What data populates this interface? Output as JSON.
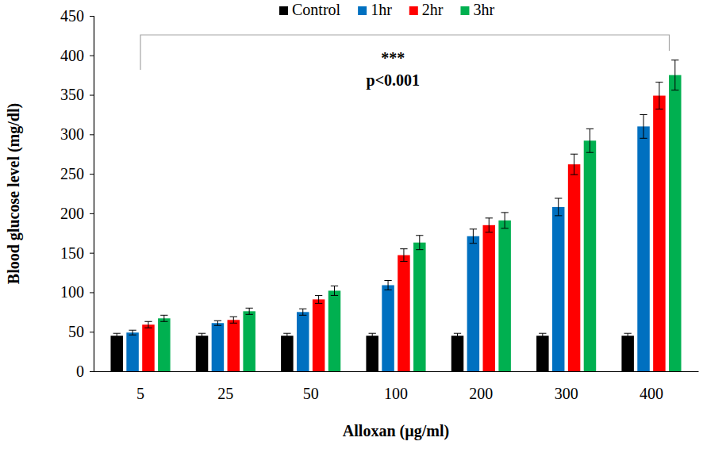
{
  "chart_data": {
    "type": "bar",
    "x_label": "Alloxan (µg/ml)",
    "y_label": "Blood glucose level (mg/dl)",
    "categories": [
      "5",
      "25",
      "50",
      "100",
      "200",
      "300",
      "400"
    ],
    "series": [
      {
        "name": "Control",
        "color": "#000000",
        "values": [
          45,
          45,
          45,
          45,
          45,
          45,
          45
        ],
        "errors": [
          3,
          3,
          3,
          3,
          3,
          3,
          3
        ]
      },
      {
        "name": "1hr",
        "color": "#0070c0",
        "values": [
          49,
          61,
          75,
          109,
          171,
          208,
          310
        ],
        "errors": [
          3,
          3,
          4,
          6,
          9,
          11,
          15
        ]
      },
      {
        "name": "2hr",
        "color": "#ff0000",
        "values": [
          59,
          65,
          91,
          147,
          185,
          262,
          349
        ],
        "errors": [
          4,
          4,
          5,
          8,
          9,
          13,
          17
        ]
      },
      {
        "name": "3hr",
        "color": "#00b050",
        "values": [
          67,
          76,
          102,
          163,
          191,
          292,
          375
        ],
        "errors": [
          4,
          4,
          6,
          9,
          10,
          15,
          19
        ]
      }
    ],
    "annotations": [
      "***",
      "p<0.001"
    ],
    "ylim": [
      0,
      450
    ],
    "yticks": [
      0,
      50,
      100,
      150,
      200,
      250,
      300,
      350,
      400,
      450
    ],
    "grid": false,
    "legend": "top"
  }
}
